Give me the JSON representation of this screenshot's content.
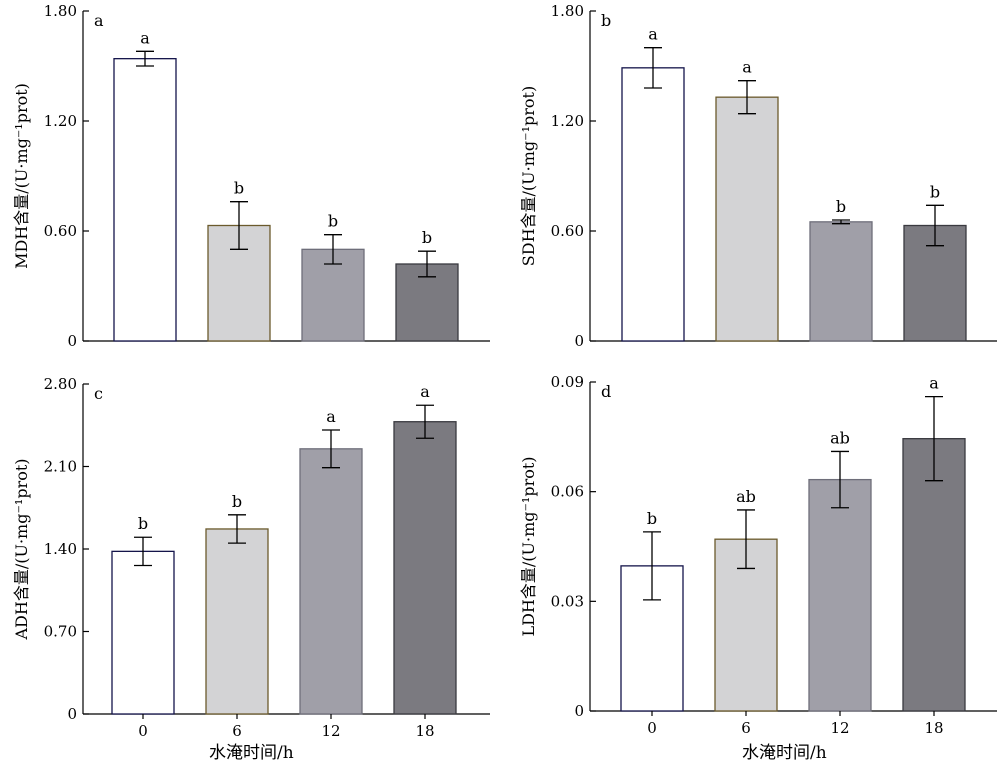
{
  "x_axis_title": "水淹时间/h",
  "bar_colors": [
    "#ffffff",
    "#d3d3d5",
    "#a09fa8",
    "#7b7a80"
  ],
  "bar_edge_colors": [
    "#14144a",
    "#6b5a2c",
    "#6e6e7a",
    "#3a3a40"
  ],
  "chart_data": [
    {
      "type": "bar",
      "panel_label": "a",
      "ylabel": "MDH含量/(U·mg⁻¹prot)",
      "categories": [
        "0",
        "6",
        "12",
        "18"
      ],
      "values": [
        1.54,
        0.63,
        0.5,
        0.42
      ],
      "errors": [
        0.04,
        0.13,
        0.08,
        0.07
      ],
      "significance": [
        "a",
        "b",
        "b",
        "b"
      ],
      "ylim": [
        0,
        1.8
      ],
      "yticks": [
        "0",
        "0.60",
        "1.20",
        "1.80"
      ],
      "ytick_values": [
        0,
        0.6,
        1.2,
        1.8
      ],
      "show_x_tick_labels": false
    },
    {
      "type": "bar",
      "panel_label": "b",
      "ylabel": "SDH含量/(U·mg⁻¹prot)",
      "categories": [
        "0",
        "6",
        "12",
        "18"
      ],
      "values": [
        1.49,
        1.33,
        0.65,
        0.63
      ],
      "errors": [
        0.11,
        0.09,
        0.01,
        0.11
      ],
      "significance": [
        "a",
        "a",
        "b",
        "b"
      ],
      "ylim": [
        0,
        1.8
      ],
      "yticks": [
        "0",
        "0.60",
        "1.20",
        "1.80"
      ],
      "ytick_values": [
        0,
        0.6,
        1.2,
        1.8
      ],
      "show_x_tick_labels": false
    },
    {
      "type": "bar",
      "panel_label": "c",
      "ylabel": "ADH含量/(U·mg⁻¹prot)",
      "categories": [
        "0",
        "6",
        "12",
        "18"
      ],
      "values": [
        1.38,
        1.57,
        2.25,
        2.48
      ],
      "errors": [
        0.12,
        0.12,
        0.16,
        0.14
      ],
      "significance": [
        "b",
        "b",
        "a",
        "a"
      ],
      "ylim": [
        0,
        2.8
      ],
      "yticks": [
        "0",
        "0.70",
        "1.40",
        "2.10",
        "2.80"
      ],
      "ytick_values": [
        0,
        0.7,
        1.4,
        2.1,
        2.8
      ],
      "show_x_tick_labels": true
    },
    {
      "type": "bar",
      "panel_label": "d",
      "ylabel": "LDH含量/(U·mg⁻¹prot)",
      "categories": [
        "0",
        "6",
        "12",
        "18"
      ],
      "values": [
        0.0397,
        0.047,
        0.0633,
        0.0745
      ],
      "errors": [
        0.0093,
        0.008,
        0.0077,
        0.0115
      ],
      "significance": [
        "b",
        "ab",
        "ab",
        "a"
      ],
      "ylim": [
        0,
        0.09
      ],
      "yticks": [
        "0",
        "0.03",
        "0.06",
        "0.09"
      ],
      "ytick_values": [
        0,
        0.03,
        0.06,
        0.09
      ],
      "show_x_tick_labels": true
    }
  ]
}
